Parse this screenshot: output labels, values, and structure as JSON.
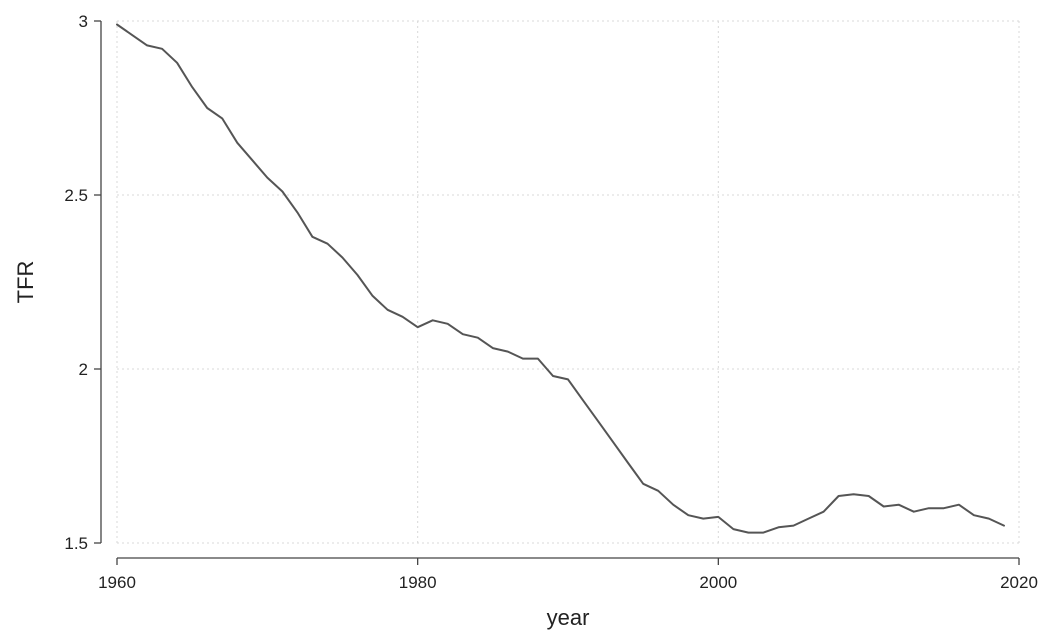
{
  "chart_data": {
    "type": "line",
    "title": "",
    "xlabel": "year",
    "ylabel": "TFR",
    "xlim": [
      1960,
      2020
    ],
    "ylim": [
      1.5,
      3
    ],
    "x_ticks": [
      1960,
      1980,
      2000,
      2020
    ],
    "y_ticks": [
      1.5,
      2,
      2.5,
      3
    ],
    "x_tick_labels": [
      "1960",
      "1980",
      "2000",
      "2020"
    ],
    "y_tick_labels": [
      "1.5",
      "2",
      "2.5",
      "3"
    ],
    "grid": true,
    "legend": "none",
    "line_color": "#555555",
    "series": [
      {
        "x": [
          1960,
          1961,
          1962,
          1963,
          1964,
          1965,
          1966,
          1967,
          1968,
          1969,
          1970,
          1971,
          1972,
          1973,
          1974,
          1975,
          1976,
          1977,
          1978,
          1979,
          1980,
          1981,
          1982,
          1983,
          1984,
          1985,
          1986,
          1987,
          1988,
          1989,
          1990,
          1991,
          1992,
          1993,
          1994,
          1995,
          1996,
          1997,
          1998,
          1999,
          2000,
          2001,
          2002,
          2003,
          2004,
          2005,
          2006,
          2007,
          2008,
          2009,
          2010,
          2011,
          2012,
          2013,
          2014,
          2015,
          2016,
          2017,
          2018,
          2019
        ],
        "values": [
          2.99,
          2.96,
          2.93,
          2.92,
          2.88,
          2.81,
          2.75,
          2.72,
          2.65,
          2.6,
          2.55,
          2.51,
          2.45,
          2.38,
          2.36,
          2.32,
          2.27,
          2.21,
          2.17,
          2.15,
          2.12,
          2.14,
          2.13,
          2.1,
          2.09,
          2.06,
          2.05,
          2.03,
          2.03,
          1.98,
          1.97,
          1.91,
          1.85,
          1.79,
          1.73,
          1.67,
          1.65,
          1.61,
          1.58,
          1.57,
          1.575,
          1.54,
          1.53,
          1.53,
          1.545,
          1.55,
          1.57,
          1.59,
          1.635,
          1.64,
          1.635,
          1.605,
          1.61,
          1.59,
          1.6,
          1.6,
          1.61,
          1.58,
          1.57,
          1.55
        ]
      }
    ]
  }
}
